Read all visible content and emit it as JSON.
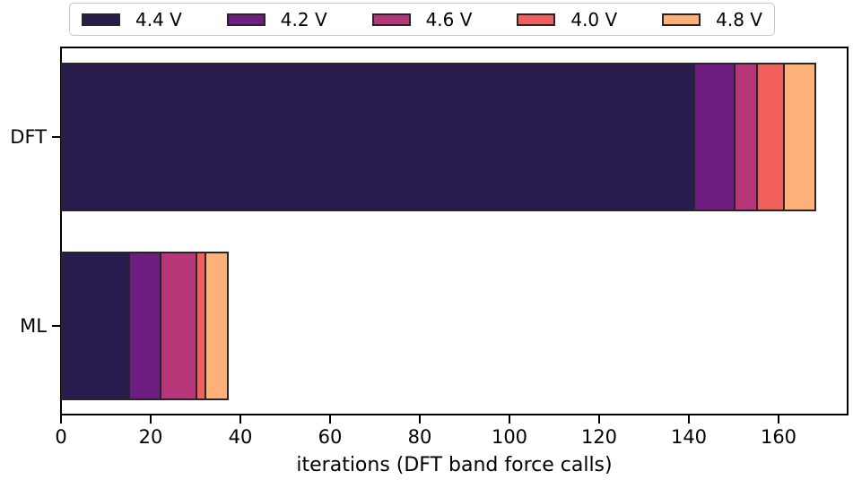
{
  "figure": {
    "background": "#ffffff",
    "spine_color": "#000000",
    "bar_edge_color": "#262626",
    "legend_border_color": "#c6c6c6"
  },
  "chart_data": {
    "type": "bar",
    "orientation": "horizontal",
    "stacked": true,
    "title": "",
    "xlabel": "iterations (DFT band force calls)",
    "ylabel": "",
    "categories": [
      "DFT",
      "ML"
    ],
    "series": [
      {
        "name": "4.4 V",
        "color": "#2a1b4e",
        "values": [
          141,
          15
        ]
      },
      {
        "name": "4.2 V",
        "color": "#6e1e81",
        "values": [
          9,
          7
        ]
      },
      {
        "name": "4.6 V",
        "color": "#b63779",
        "values": [
          5,
          8
        ]
      },
      {
        "name": "4.0 V",
        "color": "#f1605d",
        "values": [
          6,
          2
        ]
      },
      {
        "name": "4.8 V",
        "color": "#fdb07a",
        "values": [
          7,
          5
        ]
      }
    ],
    "stack_totals": [
      168,
      37
    ],
    "xlim": [
      0,
      176
    ],
    "xticks": [
      0,
      20,
      40,
      60,
      80,
      100,
      120,
      140,
      160
    ],
    "legend_position": "top",
    "grid": false
  }
}
